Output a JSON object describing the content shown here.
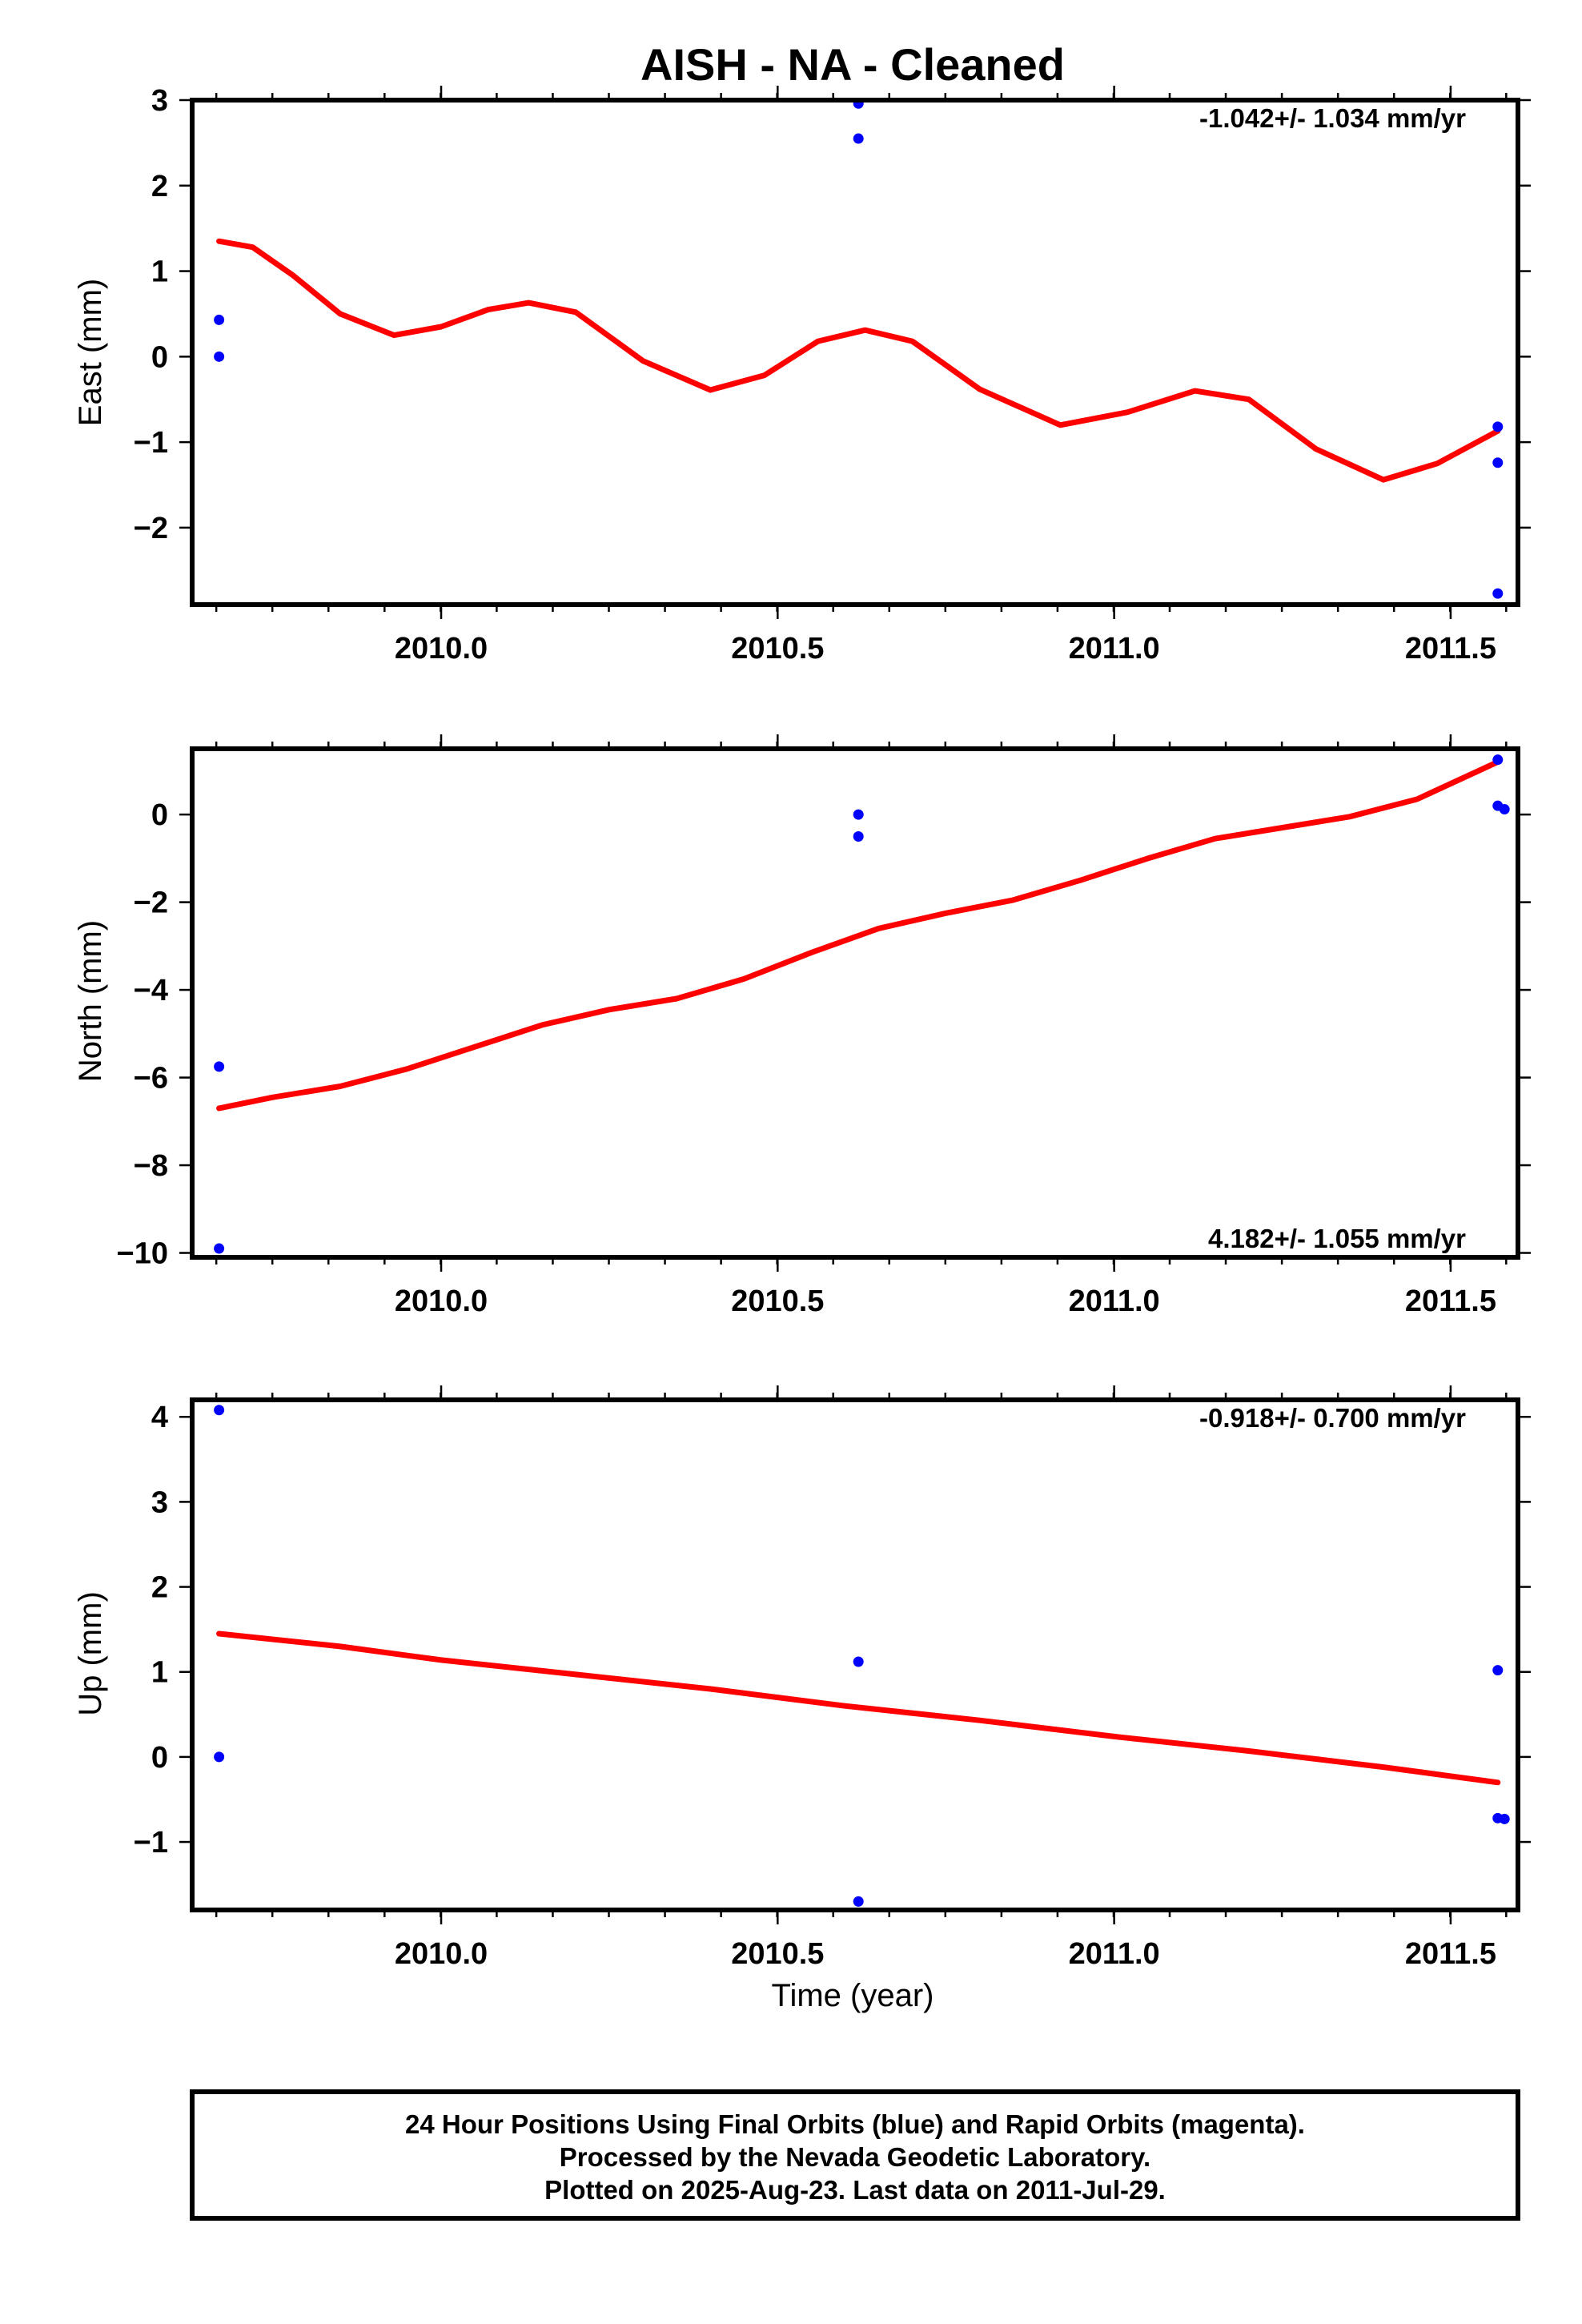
{
  "title": "AISH  - NA - Cleaned",
  "xlabel": "Time (year)",
  "colors": {
    "points": "#0000ff",
    "fit": "#ff0000"
  },
  "footer": {
    "line1": "24 Hour Positions Using Final Orbits (blue) and Rapid Orbits (magenta).",
    "line2": "Processed by the Nevada Geodetic Laboratory.",
    "line3": "Plotted on 2025-Aug-23. Last data on 2011-Jul-29."
  },
  "chart_data": [
    {
      "type": "scatter",
      "ylabel": "East (mm)",
      "rate": "-1.042+/- 1.034 mm/yr",
      "rate_position": "top-right",
      "xlim": [
        2009.63,
        2011.6
      ],
      "ylim": [
        -2.9,
        3.0
      ],
      "x_ticks": [
        2010.0,
        2010.5,
        2011.0,
        2011.5
      ],
      "x_tick_labels": [
        "2010.0",
        "2010.5",
        "2011.0",
        "2011.5"
      ],
      "y_ticks": [
        -2,
        -1,
        0,
        1,
        2,
        3
      ],
      "y_tick_labels": [
        "−2",
        "−1",
        "0",
        "1",
        "2",
        "3"
      ],
      "points": [
        {
          "x": 2009.67,
          "y": 0.43
        },
        {
          "x": 2009.67,
          "y": 0.0
        },
        {
          "x": 2010.62,
          "y": 2.96
        },
        {
          "x": 2010.62,
          "y": 2.55
        },
        {
          "x": 2011.57,
          "y": -0.82
        },
        {
          "x": 2011.57,
          "y": -1.24
        },
        {
          "x": 2011.57,
          "y": -2.77
        }
      ],
      "fit": [
        {
          "x": 2009.67,
          "y": 1.35
        },
        {
          "x": 2009.72,
          "y": 1.28
        },
        {
          "x": 2009.78,
          "y": 0.95
        },
        {
          "x": 2009.85,
          "y": 0.5
        },
        {
          "x": 2009.93,
          "y": 0.25
        },
        {
          "x": 2010.0,
          "y": 0.35
        },
        {
          "x": 2010.07,
          "y": 0.55
        },
        {
          "x": 2010.13,
          "y": 0.63
        },
        {
          "x": 2010.2,
          "y": 0.52
        },
        {
          "x": 2010.3,
          "y": -0.05
        },
        {
          "x": 2010.4,
          "y": -0.39
        },
        {
          "x": 2010.48,
          "y": -0.22
        },
        {
          "x": 2010.56,
          "y": 0.18
        },
        {
          "x": 2010.63,
          "y": 0.31
        },
        {
          "x": 2010.7,
          "y": 0.18
        },
        {
          "x": 2010.8,
          "y": -0.38
        },
        {
          "x": 2010.92,
          "y": -0.8
        },
        {
          "x": 2011.02,
          "y": -0.65
        },
        {
          "x": 2011.12,
          "y": -0.4
        },
        {
          "x": 2011.2,
          "y": -0.5
        },
        {
          "x": 2011.3,
          "y": -1.08
        },
        {
          "x": 2011.4,
          "y": -1.44
        },
        {
          "x": 2011.48,
          "y": -1.25
        },
        {
          "x": 2011.57,
          "y": -0.87
        }
      ]
    },
    {
      "type": "scatter",
      "ylabel": "North (mm)",
      "rate": "4.182+/- 1.055 mm/yr",
      "rate_position": "bottom-right",
      "xlim": [
        2009.63,
        2011.6
      ],
      "ylim": [
        -10.1,
        1.5
      ],
      "x_ticks": [
        2010.0,
        2010.5,
        2011.0,
        2011.5
      ],
      "x_tick_labels": [
        "2010.0",
        "2010.5",
        "2011.0",
        "2011.5"
      ],
      "y_ticks": [
        -10,
        -8,
        -6,
        -4,
        -2,
        0
      ],
      "y_tick_labels": [
        "−10",
        "−8",
        "−6",
        "−4",
        "−2",
        "0"
      ],
      "points": [
        {
          "x": 2009.67,
          "y": -5.75
        },
        {
          "x": 2009.67,
          "y": -9.9
        },
        {
          "x": 2010.62,
          "y": 0.0
        },
        {
          "x": 2010.62,
          "y": -0.5
        },
        {
          "x": 2011.57,
          "y": 1.25
        },
        {
          "x": 2011.57,
          "y": 0.2
        },
        {
          "x": 2011.58,
          "y": 0.12
        }
      ],
      "fit": [
        {
          "x": 2009.67,
          "y": -6.7
        },
        {
          "x": 2009.75,
          "y": -6.45
        },
        {
          "x": 2009.85,
          "y": -6.2
        },
        {
          "x": 2009.95,
          "y": -5.8
        },
        {
          "x": 2010.05,
          "y": -5.3
        },
        {
          "x": 2010.15,
          "y": -4.8
        },
        {
          "x": 2010.25,
          "y": -4.45
        },
        {
          "x": 2010.35,
          "y": -4.2
        },
        {
          "x": 2010.45,
          "y": -3.75
        },
        {
          "x": 2010.55,
          "y": -3.15
        },
        {
          "x": 2010.65,
          "y": -2.6
        },
        {
          "x": 2010.75,
          "y": -2.25
        },
        {
          "x": 2010.85,
          "y": -1.95
        },
        {
          "x": 2010.95,
          "y": -1.5
        },
        {
          "x": 2011.05,
          "y": -1.0
        },
        {
          "x": 2011.15,
          "y": -0.55
        },
        {
          "x": 2011.25,
          "y": -0.3
        },
        {
          "x": 2011.35,
          "y": -0.05
        },
        {
          "x": 2011.45,
          "y": 0.35
        },
        {
          "x": 2011.57,
          "y": 1.2
        }
      ]
    },
    {
      "type": "scatter",
      "ylabel": "Up (mm)",
      "rate": "-0.918+/- 0.700 mm/yr",
      "rate_position": "top-right",
      "xlim": [
        2009.63,
        2011.6
      ],
      "ylim": [
        -1.8,
        4.2
      ],
      "x_ticks": [
        2010.0,
        2010.5,
        2011.0,
        2011.5
      ],
      "x_tick_labels": [
        "2010.0",
        "2010.5",
        "2011.0",
        "2011.5"
      ],
      "y_ticks": [
        -1,
        0,
        1,
        2,
        3,
        4
      ],
      "y_tick_labels": [
        "−1",
        "0",
        "1",
        "2",
        "3",
        "4"
      ],
      "points": [
        {
          "x": 2009.67,
          "y": 4.08
        },
        {
          "x": 2009.67,
          "y": 0.0
        },
        {
          "x": 2010.62,
          "y": 1.12
        },
        {
          "x": 2010.62,
          "y": -1.7
        },
        {
          "x": 2011.57,
          "y": 1.02
        },
        {
          "x": 2011.57,
          "y": -0.72
        },
        {
          "x": 2011.58,
          "y": -0.73
        }
      ],
      "fit": [
        {
          "x": 2009.67,
          "y": 1.45
        },
        {
          "x": 2009.85,
          "y": 1.3
        },
        {
          "x": 2010.0,
          "y": 1.14
        },
        {
          "x": 2010.2,
          "y": 0.97
        },
        {
          "x": 2010.4,
          "y": 0.8
        },
        {
          "x": 2010.6,
          "y": 0.6
        },
        {
          "x": 2010.8,
          "y": 0.43
        },
        {
          "x": 2011.0,
          "y": 0.24
        },
        {
          "x": 2011.2,
          "y": 0.07
        },
        {
          "x": 2011.4,
          "y": -0.12
        },
        {
          "x": 2011.57,
          "y": -0.3
        }
      ]
    }
  ]
}
